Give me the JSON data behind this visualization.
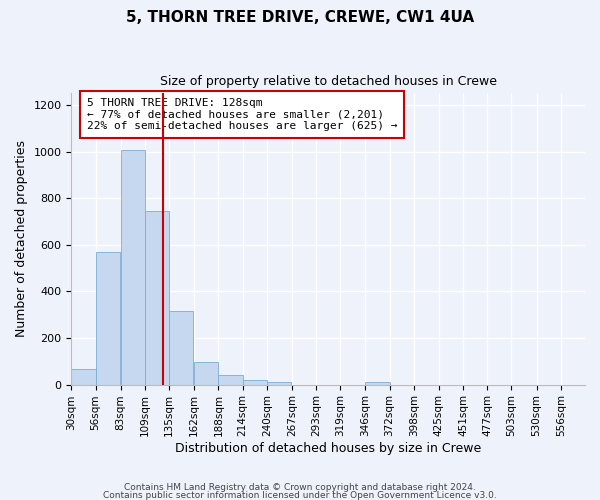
{
  "title1": "5, THORN TREE DRIVE, CREWE, CW1 4UA",
  "title2": "Size of property relative to detached houses in Crewe",
  "xlabel": "Distribution of detached houses by size in Crewe",
  "ylabel": "Number of detached properties",
  "annotation_line1": "5 THORN TREE DRIVE: 128sqm",
  "annotation_line2": "← 77% of detached houses are smaller (2,201)",
  "annotation_line3": "22% of semi-detached houses are larger (625) →",
  "footer1": "Contains HM Land Registry data © Crown copyright and database right 2024.",
  "footer2": "Contains public sector information licensed under the Open Government Licence v3.0.",
  "bar_edges": [
    30,
    56,
    83,
    109,
    135,
    162,
    188,
    214,
    240,
    267,
    293,
    319,
    346,
    372,
    398,
    425,
    451,
    477,
    503,
    530,
    556
  ],
  "bar_heights": [
    65,
    570,
    1005,
    745,
    315,
    95,
    40,
    20,
    10,
    0,
    0,
    0,
    10,
    0,
    0,
    0,
    0,
    0,
    0,
    0
  ],
  "bar_color": "#c5d8ef",
  "bar_edge_color": "#7aadd4",
  "red_line_x": 128,
  "ylim": [
    0,
    1250
  ],
  "yticks": [
    0,
    200,
    400,
    600,
    800,
    1000,
    1200
  ],
  "annotation_box_color": "#ffffff",
  "annotation_box_edge": "#cc0000",
  "red_line_color": "#cc0000",
  "bg_color": "#eef2fa"
}
